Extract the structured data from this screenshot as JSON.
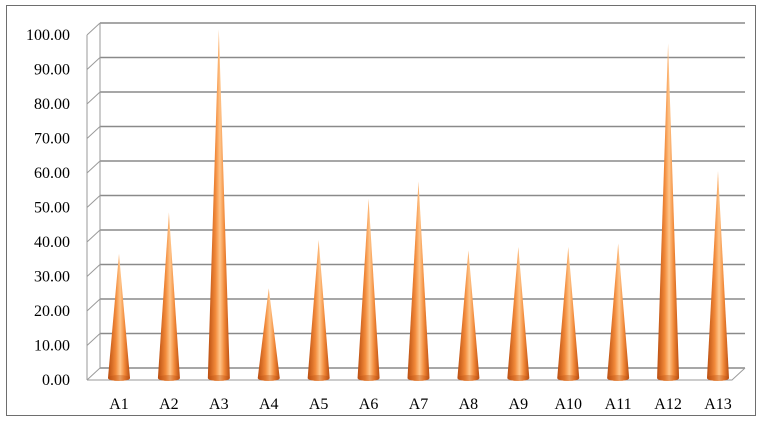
{
  "chart_data": {
    "type": "bar",
    "style": "3d-cone",
    "categories": [
      "A1",
      "A2",
      "A3",
      "A4",
      "A5",
      "A6",
      "A7",
      "A8",
      "A9",
      "A10",
      "A11",
      "A12",
      "A13"
    ],
    "values": [
      36,
      48,
      101,
      26,
      40,
      52,
      57,
      37,
      38,
      38,
      39,
      97,
      60
    ],
    "ylim": [
      0,
      100
    ],
    "yticks": [
      "0.00",
      "10.00",
      "20.00",
      "30.00",
      "40.00",
      "50.00",
      "60.00",
      "70.00",
      "80.00",
      "90.00",
      "100.00"
    ],
    "grid": true,
    "legend": "none",
    "colors": {
      "cone_light": "#ffc58a",
      "cone_mid": "#f28a3a",
      "cone_dark": "#b94d10",
      "grid": "#8a8a8a",
      "axis": "#9a9a9a"
    }
  }
}
